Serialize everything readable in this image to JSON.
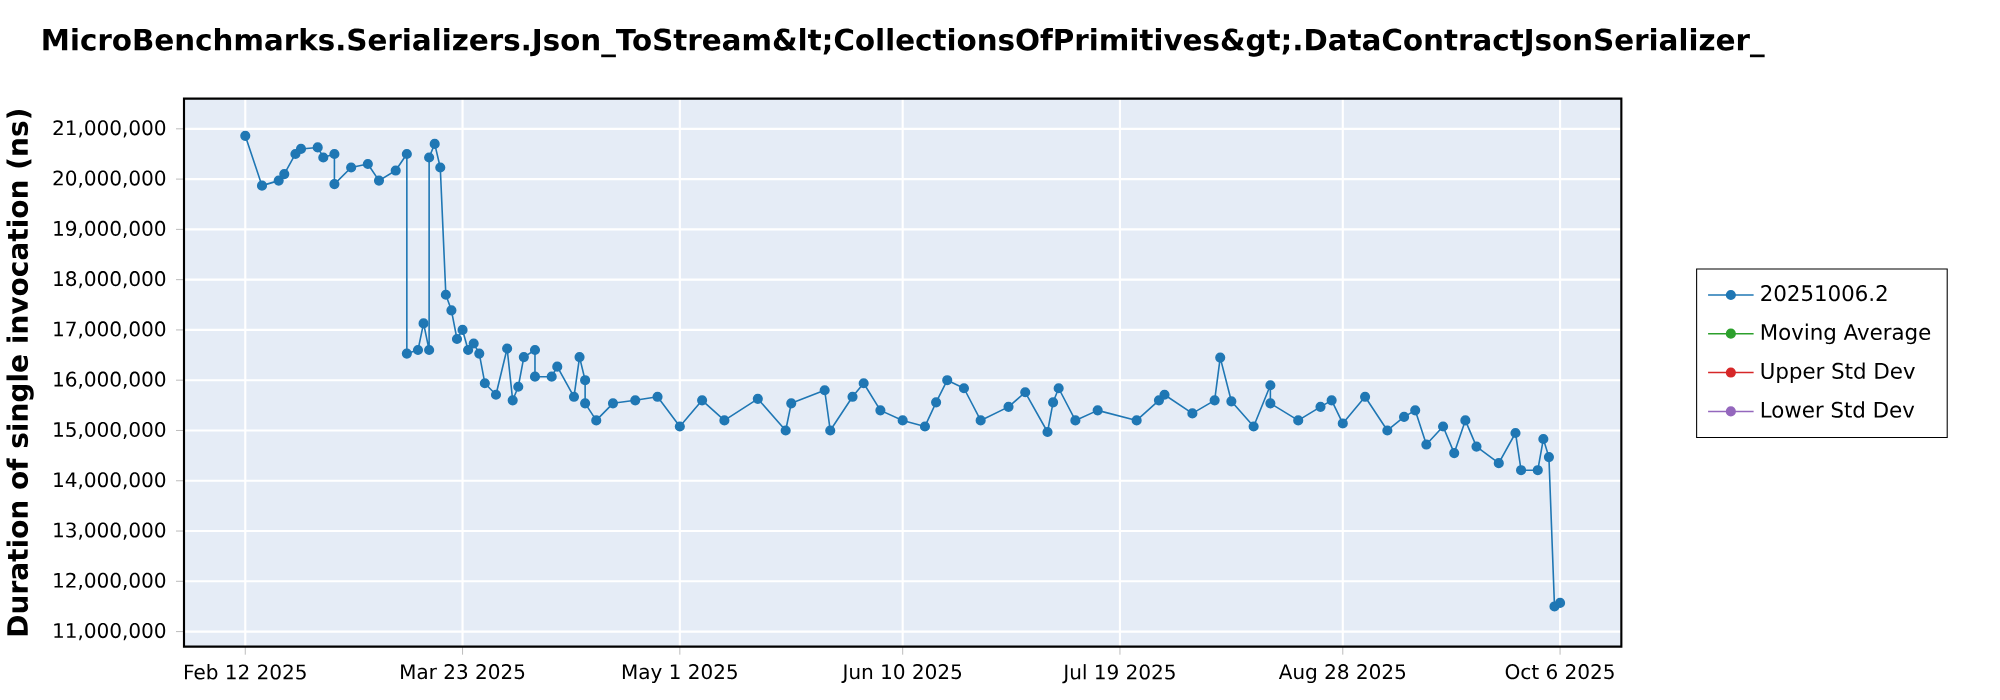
{
  "chart_data": {
    "type": "line",
    "title": "MicroBenchmarks.Serializers.Json_ToStream&lt;CollectionsOfPrimitives&gt;.DataContractJsonSerializer_",
    "ylabel": "Duration of single invocation (ns)",
    "series": [
      {
        "name": "20251006.2",
        "color": "#1f77b4",
        "x": [
          "2025-02-12",
          "2025-02-15",
          "2025-02-18",
          "2025-02-19",
          "2025-02-21",
          "2025-02-22",
          "2025-02-25",
          "2025-02-26",
          "2025-02-28",
          "2025-02-28",
          "2025-03-03",
          "2025-03-06",
          "2025-03-08",
          "2025-03-11",
          "2025-03-13",
          "2025-03-13",
          "2025-03-15",
          "2025-03-16",
          "2025-03-17",
          "2025-03-17",
          "2025-03-18",
          "2025-03-19",
          "2025-03-20",
          "2025-03-21",
          "2025-03-22",
          "2025-03-23",
          "2025-03-24",
          "2025-03-25",
          "2025-03-26",
          "2025-03-27",
          "2025-03-29",
          "2025-03-31",
          "2025-04-01",
          "2025-04-02",
          "2025-04-03",
          "2025-04-05",
          "2025-04-05",
          "2025-04-08",
          "2025-04-09",
          "2025-04-12",
          "2025-04-13",
          "2025-04-14",
          "2025-04-14",
          "2025-04-16",
          "2025-04-19",
          "2025-04-23",
          "2025-04-27",
          "2025-05-01",
          "2025-05-05",
          "2025-05-09",
          "2025-05-15",
          "2025-05-20",
          "2025-05-21",
          "2025-05-27",
          "2025-05-28",
          "2025-06-01",
          "2025-06-03",
          "2025-06-06",
          "2025-06-10",
          "2025-06-14",
          "2025-06-16",
          "2025-06-18",
          "2025-06-21",
          "2025-06-24",
          "2025-06-29",
          "2025-07-02",
          "2025-07-06",
          "2025-07-07",
          "2025-07-08",
          "2025-07-11",
          "2025-07-15",
          "2025-07-22",
          "2025-07-26",
          "2025-07-27",
          "2025-08-01",
          "2025-08-05",
          "2025-08-06",
          "2025-08-08",
          "2025-08-12",
          "2025-08-15",
          "2025-08-15",
          "2025-08-20",
          "2025-08-24",
          "2025-08-26",
          "2025-08-28",
          "2025-09-01",
          "2025-09-05",
          "2025-09-08",
          "2025-09-10",
          "2025-09-12",
          "2025-09-15",
          "2025-09-17",
          "2025-09-19",
          "2025-09-21",
          "2025-09-25",
          "2025-09-28",
          "2025-09-29",
          "2025-10-02",
          "2025-10-03",
          "2025-10-04",
          "2025-10-05",
          "2025-10-06"
        ],
        "values": [
          20860000,
          19870000,
          19970000,
          20100000,
          20500000,
          20600000,
          20630000,
          20430000,
          20500000,
          19900000,
          20230000,
          20300000,
          19970000,
          20170000,
          20500000,
          16530000,
          16600000,
          17130000,
          16600000,
          20430000,
          20700000,
          20230000,
          17700000,
          17390000,
          16820000,
          17000000,
          16600000,
          16730000,
          16530000,
          15940000,
          15710000,
          16630000,
          15600000,
          15870000,
          16460000,
          16600000,
          16070000,
          16070000,
          16270000,
          15670000,
          16460000,
          16000000,
          15540000,
          15200000,
          15540000,
          15600000,
          15670000,
          15080000,
          15600000,
          15200000,
          15630000,
          15000000,
          15540000,
          15800000,
          15000000,
          15670000,
          15940000,
          15400000,
          15200000,
          15080000,
          15560000,
          16000000,
          15840000,
          15200000,
          15470000,
          15760000,
          14970000,
          15560000,
          15840000,
          15200000,
          15400000,
          15200000,
          15600000,
          15710000,
          15340000,
          15600000,
          16450000,
          15580000,
          15080000,
          15900000,
          15540000,
          15200000,
          15470000,
          15600000,
          15140000,
          15670000,
          15000000,
          15270000,
          15400000,
          14720000,
          15080000,
          14550000,
          15200000,
          14680000,
          14350000,
          14950000,
          14210000,
          14210000,
          14830000,
          14470000,
          11500000,
          11570000
        ]
      },
      {
        "name": "Moving Average",
        "color": "#2ca02c"
      },
      {
        "name": "Upper Std Dev",
        "color": "#d62728"
      },
      {
        "name": "Lower Std Dev",
        "color": "#9467bd"
      }
    ],
    "xlim": [
      "2025-02-01",
      "2025-10-17"
    ],
    "xticks": [
      {
        "value": "2025-02-12",
        "label": "Feb 12 2025"
      },
      {
        "value": "2025-03-23",
        "label": "Mar 23 2025"
      },
      {
        "value": "2025-05-01",
        "label": "May 1 2025"
      },
      {
        "value": "2025-06-10",
        "label": "Jun 10 2025"
      },
      {
        "value": "2025-07-19",
        "label": "Jul 19 2025"
      },
      {
        "value": "2025-08-28",
        "label": "Aug 28 2025"
      },
      {
        "value": "2025-10-06",
        "label": "Oct 6 2025"
      }
    ],
    "ylim": [
      10700000,
      21600000
    ],
    "yticks": [
      {
        "value": 11000000,
        "label": "11,000,000"
      },
      {
        "value": 12000000,
        "label": "12,000,000"
      },
      {
        "value": 13000000,
        "label": "13,000,000"
      },
      {
        "value": 14000000,
        "label": "14,000,000"
      },
      {
        "value": 15000000,
        "label": "15,000,000"
      },
      {
        "value": 16000000,
        "label": "16,000,000"
      },
      {
        "value": 17000000,
        "label": "17,000,000"
      },
      {
        "value": 18000000,
        "label": "18,000,000"
      },
      {
        "value": 19000000,
        "label": "19,000,000"
      },
      {
        "value": 20000000,
        "label": "20,000,000"
      },
      {
        "value": 21000000,
        "label": "21,000,000"
      }
    ],
    "grid": true,
    "legend": "right",
    "marker": "circle",
    "line_style": "solid"
  }
}
